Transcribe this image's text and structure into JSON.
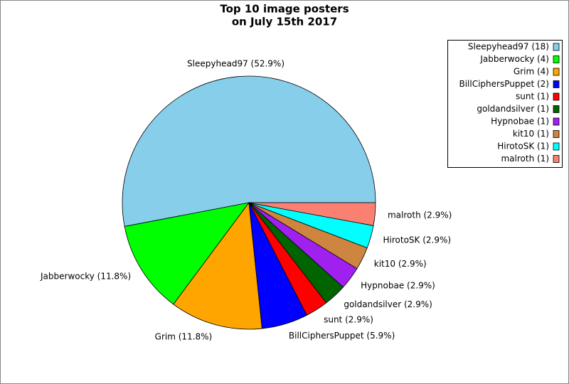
{
  "chart_data": {
    "type": "pie",
    "title": [
      "Top 10 image posters",
      "on July 15th 2017"
    ],
    "categories": [
      "Sleepyhead97",
      "Jabberwocky",
      "Grim",
      "BillCiphersPuppet",
      "sunt",
      "goldandsilver",
      "Hypnobae",
      "kit10",
      "HirotoSK",
      "malroth"
    ],
    "values": [
      52.9,
      11.8,
      11.8,
      5.9,
      2.9,
      2.9,
      2.9,
      2.9,
      2.9,
      2.9
    ],
    "value_labels": [
      "Sleepyhead97 (52.9%)",
      "Jabberwocky (11.8%)",
      "Grim (11.8%)",
      "BillCiphersPuppet (5.9%)",
      "sunt (2.9%)",
      "goldandsilver (2.9%)",
      "Hypnobae (2.9%)",
      "kit10 (2.9%)",
      "HirotoSK (2.9%)",
      "malroth (2.9%)"
    ],
    "legend_labels": [
      "Sleepyhead97 (18)",
      "Jabberwocky (4)",
      "Grim (4)",
      "BillCiphersPuppet (2)",
      "sunt (1)",
      "goldandsilver (1)",
      "Hypnobae (1)",
      "kit10 (1)",
      "HirotoSK (1)",
      "malroth (1)"
    ],
    "colors": [
      "#87ceeb",
      "#00ff00",
      "#ffa500",
      "#0000ff",
      "#ff0000",
      "#006400",
      "#a020f0",
      "#cd853f",
      "#00ffff",
      "#fa8072"
    ],
    "legend": "upper right"
  }
}
